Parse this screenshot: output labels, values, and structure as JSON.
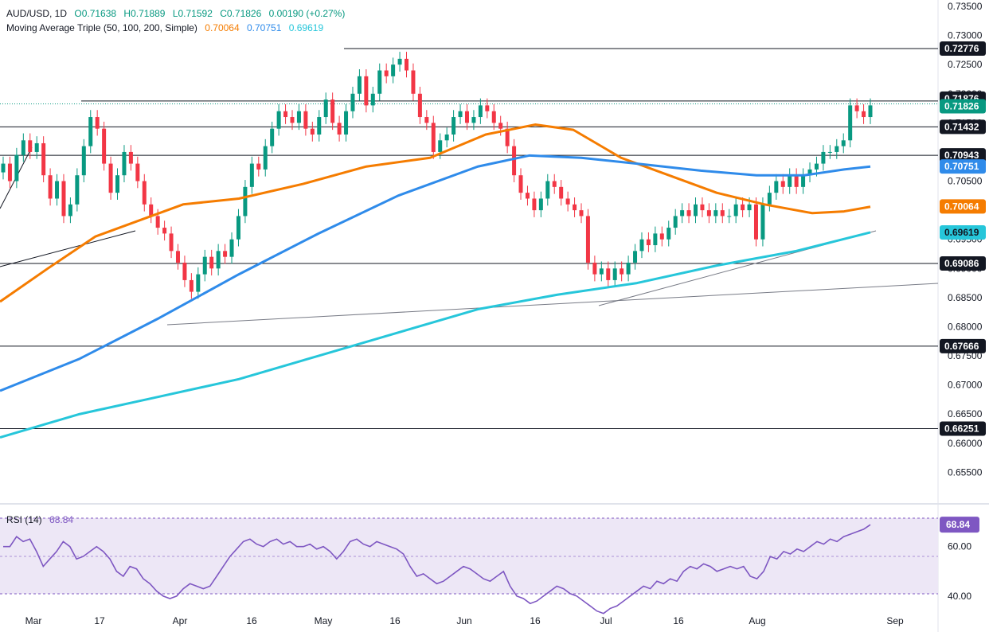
{
  "legend": {
    "symbol": "AUD/USD, 1D",
    "open": "O0.71638",
    "high": "H0.71889",
    "low": "L0.71592",
    "close": "C0.71826",
    "change": "0.00190 (+0.27%)",
    "ma_title": "Moving Average Triple (50, 100, 200, Simple)",
    "ma50": "0.70064",
    "ma100": "0.70751",
    "ma200": "0.69619",
    "rsi_title": "RSI (14)",
    "rsi_value": "68.84"
  },
  "colors": {
    "up": "#089981",
    "down": "#f23645",
    "ma50": "#f57c00",
    "ma100": "#2f8bea",
    "ma200": "#26c6da",
    "rsi": "#7e57c2",
    "rsi_band": "#ede7f6",
    "level": "#131722"
  },
  "chart_data": {
    "type": "candlestick",
    "title": "AUD/USD, 1D",
    "y_axis": {
      "range": [
        0.65,
        0.735
      ],
      "ticks": [
        "0.73500",
        "0.73000",
        "0.72500",
        "0.72000",
        "0.71500",
        "0.71000",
        "0.70500",
        "0.70000",
        "0.69500",
        "0.69000",
        "0.68500",
        "0.68000",
        "0.67500",
        "0.67000",
        "0.66500",
        "0.66000",
        "0.65500"
      ]
    },
    "x_axis": {
      "ticks": [
        "Mar",
        "17",
        "Apr",
        "16",
        "May",
        "16",
        "Jun",
        "16",
        "Jul",
        "16",
        "Aug",
        "Sep"
      ]
    },
    "price_labels": [
      {
        "text": "0.72776",
        "value": 0.72776,
        "style": "level"
      },
      {
        "text": "0.71876",
        "value": 0.71876,
        "style": "level"
      },
      {
        "text": "0.71826",
        "value": 0.71826,
        "style": "price"
      },
      {
        "text": "0.71432",
        "value": 0.71432,
        "style": "level"
      },
      {
        "text": "0.70943",
        "value": 0.70943,
        "style": "level"
      },
      {
        "text": "0.70751",
        "value": 0.70751,
        "style": "ma100"
      },
      {
        "text": "0.70064",
        "value": 0.70064,
        "style": "ma50"
      },
      {
        "text": "0.69619",
        "value": 0.69619,
        "style": "ma200"
      },
      {
        "text": "0.69086",
        "value": 0.69086,
        "style": "level"
      },
      {
        "text": "0.67666",
        "value": 0.67666,
        "style": "level"
      },
      {
        "text": "0.66251",
        "value": 0.66251,
        "style": "level"
      }
    ],
    "candles_close": [
      0.708,
      0.705,
      0.7095,
      0.712,
      0.71,
      0.7115,
      0.706,
      0.702,
      0.705,
      0.699,
      0.701,
      0.706,
      0.711,
      0.716,
      0.714,
      0.708,
      0.703,
      0.706,
      0.71,
      0.708,
      0.705,
      0.701,
      0.699,
      0.697,
      0.696,
      0.693,
      0.691,
      0.688,
      0.686,
      0.689,
      0.692,
      0.69,
      0.693,
      0.692,
      0.695,
      0.699,
      0.704,
      0.708,
      0.707,
      0.711,
      0.714,
      0.717,
      0.716,
      0.715,
      0.717,
      0.714,
      0.713,
      0.716,
      0.719,
      0.715,
      0.713,
      0.717,
      0.72,
      0.723,
      0.718,
      0.72,
      0.724,
      0.723,
      0.725,
      0.726,
      0.724,
      0.72,
      0.716,
      0.715,
      0.71,
      0.712,
      0.713,
      0.716,
      0.717,
      0.715,
      0.716,
      0.718,
      0.717,
      0.715,
      0.714,
      0.711,
      0.706,
      0.703,
      0.702,
      0.7,
      0.702,
      0.705,
      0.704,
      0.702,
      0.701,
      0.7,
      0.699,
      0.691,
      0.689,
      0.69,
      0.688,
      0.69,
      0.689,
      0.691,
      0.693,
      0.695,
      0.694,
      0.696,
      0.695,
      0.697,
      0.699,
      0.7,
      0.699,
      0.701,
      0.7,
      0.699,
      0.7,
      0.699,
      0.699,
      0.701,
      0.7,
      0.701,
      0.695,
      0.701,
      0.703,
      0.705,
      0.704,
      0.706,
      0.704,
      0.706,
      0.707,
      0.708,
      0.71,
      0.71,
      0.711,
      0.712,
      0.718,
      0.717,
      0.716,
      0.718
    ],
    "series": [
      {
        "name": "MA 50",
        "values": [
          0.6843,
          0.7006
        ]
      },
      {
        "name": "MA 100",
        "values": [
          0.669,
          0.7075
        ]
      },
      {
        "name": "MA 200",
        "values": [
          0.661,
          0.6962
        ]
      }
    ],
    "rsi": {
      "ticks": [
        "60.00",
        "40.00"
      ],
      "range": [
        30,
        75
      ],
      "values": [
        60,
        60,
        64,
        62,
        63,
        58,
        52,
        55,
        58,
        62,
        60,
        55,
        56,
        58,
        60,
        58,
        55,
        50,
        48,
        52,
        51,
        47,
        45,
        42,
        40,
        39,
        40,
        43,
        45,
        44,
        43,
        44,
        48,
        52,
        56,
        59,
        62,
        63,
        61,
        60,
        62,
        63,
        61,
        62,
        60,
        60,
        61,
        59,
        60,
        58,
        55,
        58,
        62,
        63,
        61,
        60,
        62,
        61,
        60,
        59,
        57,
        52,
        48,
        49,
        47,
        45,
        46,
        48,
        50,
        52,
        51,
        49,
        47,
        46,
        48,
        50,
        44,
        40,
        39,
        37,
        38,
        40,
        42,
        44,
        43,
        41,
        40,
        38,
        36,
        34,
        33,
        35,
        36,
        38,
        40,
        42,
        44,
        43,
        46,
        45,
        47,
        46,
        50,
        52,
        51,
        53,
        52,
        50,
        51,
        52,
        51,
        52,
        48,
        47,
        50,
        56,
        55,
        58,
        57,
        59,
        58,
        60,
        62,
        61,
        63,
        62,
        64,
        65,
        66,
        67,
        68.84
      ]
    }
  }
}
